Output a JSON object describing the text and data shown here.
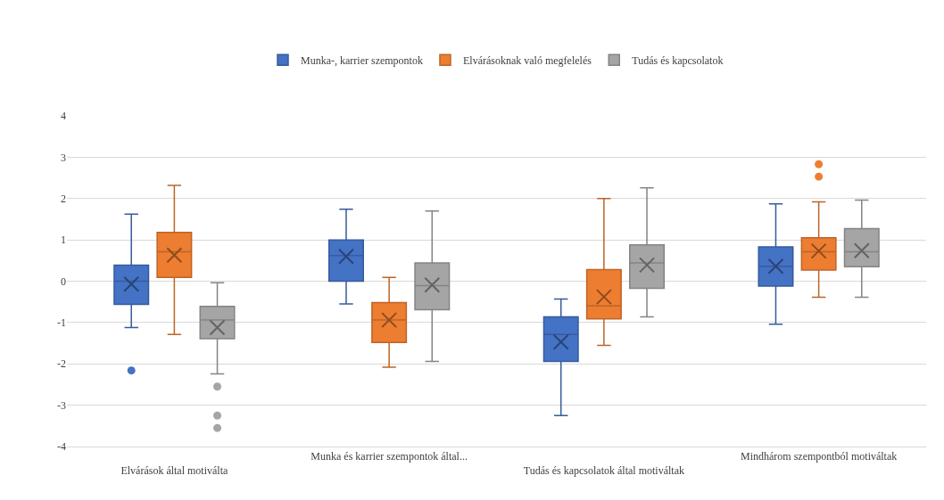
{
  "chart_data": {
    "type": "box",
    "categories": [
      "Elvárások által motiválta",
      "Munka és karrier szempontok által...",
      "Tudás és kapcsolatok által motiváltak",
      "Mindhárom szempontból motiváltak"
    ],
    "ylim": [
      -4,
      4
    ],
    "yticks": [
      -4,
      -3,
      -2,
      -1,
      0,
      1,
      2,
      3,
      4
    ],
    "grid": "y",
    "legend": "top",
    "series": [
      {
        "name": "Munka-, karrier szempontok",
        "color": "#4472c4",
        "boxes": [
          {
            "low": -1.12,
            "q1": -0.56,
            "median": 0.0,
            "q3": 0.39,
            "high": 1.62,
            "mean": -0.07,
            "outliers": [
              -2.16
            ]
          },
          {
            "low": -0.55,
            "q1": 0.0,
            "median": 0.62,
            "q3": 1.0,
            "high": 1.74,
            "mean": 0.6
          },
          {
            "low": -3.25,
            "q1": -1.94,
            "median": -1.29,
            "q3": -0.86,
            "high": -0.43,
            "mean": -1.47
          },
          {
            "low": -1.04,
            "q1": -0.12,
            "median": 0.36,
            "q3": 0.83,
            "high": 1.87,
            "mean": 0.36
          }
        ]
      },
      {
        "name": "Elvárásoknak való megfelelés",
        "color": "#ed7d31",
        "boxes": [
          {
            "low": -1.29,
            "q1": 0.09,
            "median": 0.71,
            "q3": 1.18,
            "high": 2.32,
            "mean": 0.63
          },
          {
            "low": -2.08,
            "q1": -1.48,
            "median": -0.94,
            "q3": -0.52,
            "high": 0.09,
            "mean": -0.94
          },
          {
            "low": -1.55,
            "q1": -0.91,
            "median": -0.6,
            "q3": 0.28,
            "high": 2.0,
            "mean": -0.38
          },
          {
            "low": -0.39,
            "q1": 0.27,
            "median": 0.71,
            "q3": 1.05,
            "high": 1.92,
            "mean": 0.73,
            "outliers": [
              2.83,
              2.53
            ]
          }
        ]
      },
      {
        "name": "Tudás és kapcsolatok",
        "color": "#a5a5a5",
        "boxes": [
          {
            "low": -2.24,
            "q1": -1.39,
            "median": -0.94,
            "q3": -0.61,
            "high": -0.04,
            "mean": -1.12,
            "outliers": [
              -2.55,
              -3.25,
              -3.55
            ]
          },
          {
            "low": -1.94,
            "q1": -0.69,
            "median": -0.11,
            "q3": 0.44,
            "high": 1.7,
            "mean": -0.09
          },
          {
            "low": -0.86,
            "q1": -0.17,
            "median": 0.44,
            "q3": 0.88,
            "high": 2.26,
            "mean": 0.39
          },
          {
            "low": -0.39,
            "q1": 0.35,
            "median": 0.71,
            "q3": 1.27,
            "high": 1.96,
            "mean": 0.74
          }
        ]
      }
    ]
  }
}
